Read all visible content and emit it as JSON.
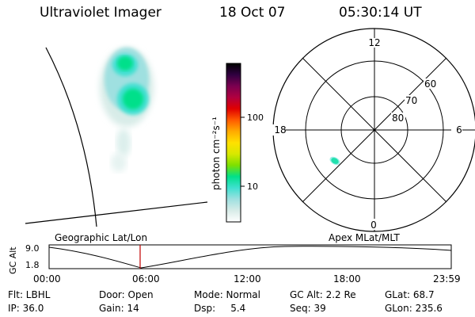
{
  "header": {
    "title": "Ultraviolet Imager",
    "date": "18 Oct 07",
    "time": "05:30:14 UT"
  },
  "colorbar": {
    "label": "photon cm⁻²s⁻¹",
    "ticks": [
      "100",
      "10"
    ],
    "scale": "log",
    "stops": [
      "#ffffff",
      "#d8ece8",
      "#9fe0e0",
      "#40e0d0",
      "#00e08a",
      "#7ee000",
      "#d8e800",
      "#ffe000",
      "#ffaa00",
      "#ff5a00",
      "#e00000",
      "#b00040",
      "#7a0050",
      "#300040",
      "#000000"
    ]
  },
  "polar": {
    "lat_labels": [
      "80",
      "70",
      "60"
    ],
    "mlt_labels": {
      "top": "12",
      "left": "18",
      "right": "6",
      "bottom": "0"
    }
  },
  "labels": {
    "geo": "Geographic Lat/Lon",
    "apex": "Apex MLat/MLT"
  },
  "timeline": {
    "ylabel": "GC Alt",
    "ymax": "9.0",
    "ymin": "1.8",
    "ticks": [
      "00:00",
      "06:00",
      "12:00",
      "18:00",
      "23:59"
    ],
    "marker_color": "#c00000"
  },
  "info": {
    "flt": "Flt: LBHL",
    "door": "Door: Open",
    "mode": "Mode: Normal",
    "gcalt": "GC Alt: 2.2 Re",
    "glat": "GLat:  68.7",
    "ip": "IP: 36.0",
    "gain": "Gain: 14",
    "dsp": "Dsp:     5.4",
    "seq": "Seq: 39",
    "glon": "GLon: 235.6"
  }
}
